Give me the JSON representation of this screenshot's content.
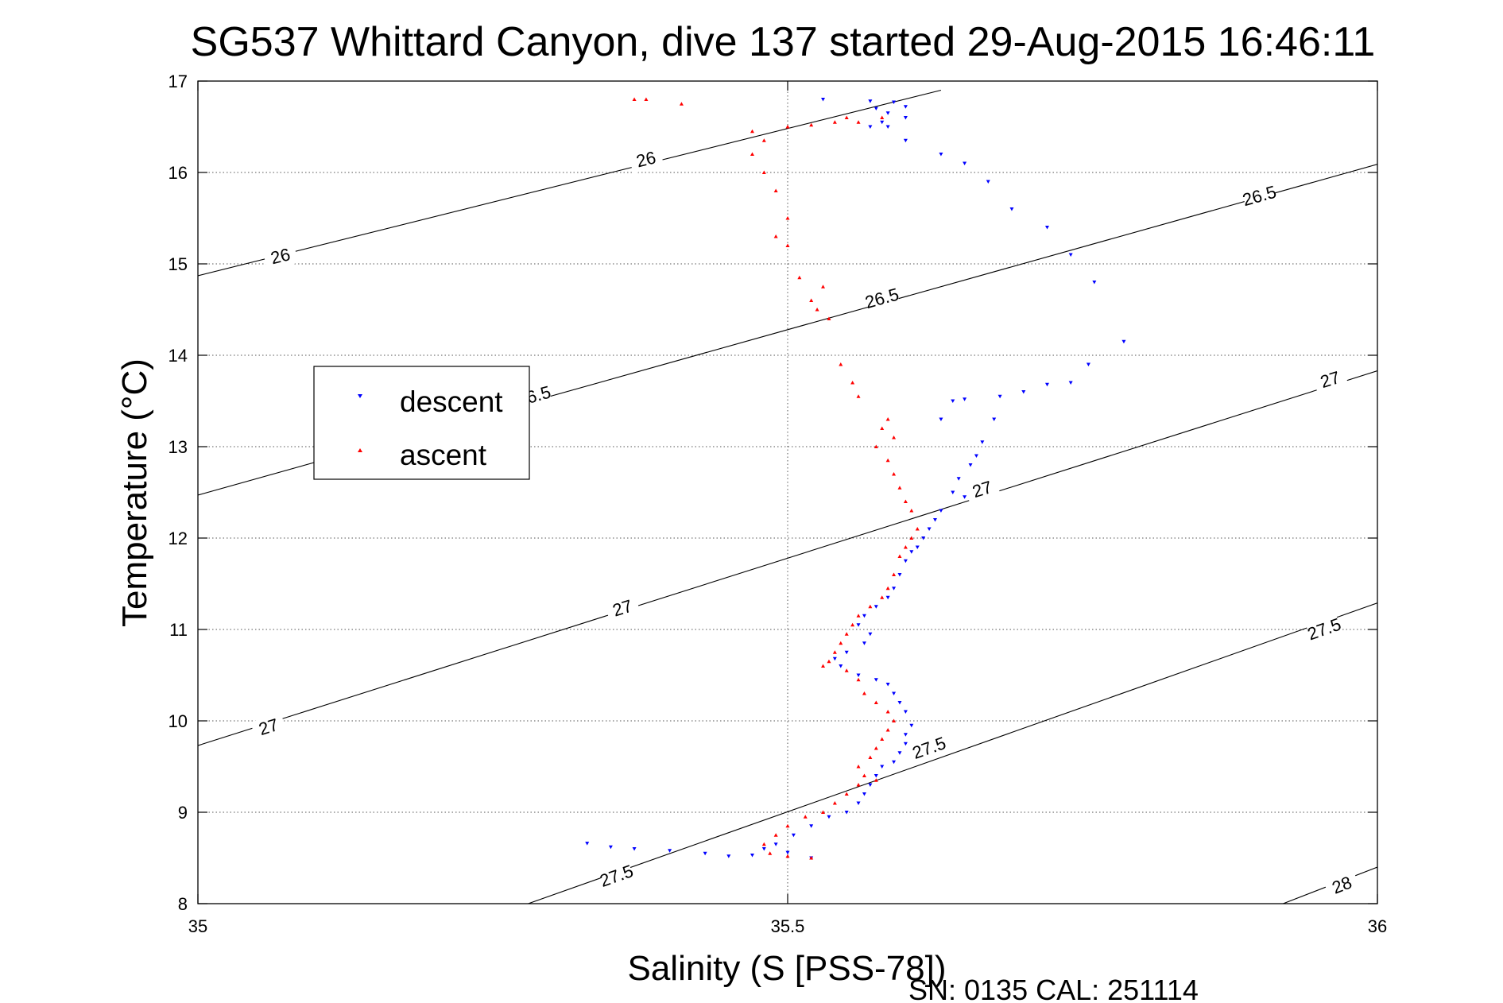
{
  "chart_data": {
    "type": "scatter",
    "title": "SG537 Whittard Canyon, dive 137 started 29-Aug-2015 16:46:11",
    "xlabel": "Salinity (S [PSS-78])",
    "ylabel": "Temperature (°C)",
    "xlim": [
      35,
      36
    ],
    "ylim": [
      8,
      17
    ],
    "xticks": [
      35,
      35.5,
      36
    ],
    "xtick_labels": [
      "35",
      "35.5",
      "36"
    ],
    "yticks": [
      8,
      9,
      10,
      11,
      12,
      13,
      14,
      15,
      16,
      17
    ],
    "ytick_labels": [
      "8",
      "9",
      "10",
      "11",
      "12",
      "13",
      "14",
      "15",
      "16",
      "17"
    ],
    "grid": true,
    "legend_position": "middle-left",
    "footer": "SN: 0135  CAL: 251114",
    "isopycnals": [
      {
        "sigma": 26.0,
        "points": [
          [
            35.0,
            14.87
          ],
          [
            35.63,
            16.9
          ]
        ],
        "labels": [
          {
            "text": "26",
            "x": 35.07,
            "y": 15.08
          },
          {
            "text": "26",
            "x": 35.38,
            "y": 16.14
          }
        ]
      },
      {
        "sigma": 26.5,
        "points": [
          [
            35.0,
            12.47
          ],
          [
            36.0,
            16.09
          ]
        ],
        "labels": [
          {
            "text": "26.5",
            "x": 35.58,
            "y": 14.62
          },
          {
            "text": "26.5",
            "x": 35.9,
            "y": 15.74
          },
          {
            "text": "26.5",
            "x": 35.285,
            "y": 13.55
          }
        ]
      },
      {
        "sigma": 27.0,
        "points": [
          [
            35.0,
            9.73
          ],
          [
            36.0,
            13.83
          ]
        ],
        "labels": [
          {
            "text": "27",
            "x": 35.06,
            "y": 9.93
          },
          {
            "text": "27",
            "x": 35.36,
            "y": 11.23
          },
          {
            "text": "27",
            "x": 35.665,
            "y": 12.53
          },
          {
            "text": "27",
            "x": 35.96,
            "y": 13.73
          }
        ]
      },
      {
        "sigma": 27.5,
        "points": [
          [
            35.28,
            8.0
          ],
          [
            36.0,
            11.29
          ]
        ],
        "labels": [
          {
            "text": "27.5",
            "x": 35.355,
            "y": 8.3
          },
          {
            "text": "27.5",
            "x": 35.62,
            "y": 9.7
          },
          {
            "text": "27.5",
            "x": 35.955,
            "y": 11.0
          }
        ]
      },
      {
        "sigma": 28.0,
        "points": [
          [
            35.92,
            8.0
          ],
          [
            36.0,
            8.4
          ]
        ],
        "labels": [
          {
            "text": "28",
            "x": 35.97,
            "y": 8.2
          }
        ]
      }
    ],
    "series": [
      {
        "name": "descent",
        "color": "#0000ff",
        "marker": "triangle-down",
        "points": [
          [
            35.53,
            16.8
          ],
          [
            35.57,
            16.78
          ],
          [
            35.59,
            16.77
          ],
          [
            35.6,
            16.72
          ],
          [
            35.575,
            16.7
          ],
          [
            35.585,
            16.65
          ],
          [
            35.6,
            16.6
          ],
          [
            35.58,
            16.55
          ],
          [
            35.57,
            16.5
          ],
          [
            35.585,
            16.5
          ],
          [
            35.6,
            16.35
          ],
          [
            35.63,
            16.2
          ],
          [
            35.65,
            16.1
          ],
          [
            35.67,
            15.9
          ],
          [
            35.69,
            15.6
          ],
          [
            35.72,
            15.4
          ],
          [
            35.74,
            15.1
          ],
          [
            35.76,
            14.8
          ],
          [
            35.785,
            14.15
          ],
          [
            35.755,
            13.9
          ],
          [
            35.74,
            13.7
          ],
          [
            35.72,
            13.68
          ],
          [
            35.7,
            13.6
          ],
          [
            35.68,
            13.55
          ],
          [
            35.65,
            13.52
          ],
          [
            35.64,
            13.5
          ],
          [
            35.63,
            13.3
          ],
          [
            35.675,
            13.3
          ],
          [
            35.665,
            13.05
          ],
          [
            35.66,
            12.9
          ],
          [
            35.655,
            12.8
          ],
          [
            35.645,
            12.65
          ],
          [
            35.64,
            12.5
          ],
          [
            35.65,
            12.45
          ],
          [
            35.63,
            12.3
          ],
          [
            35.625,
            12.2
          ],
          [
            35.62,
            12.1
          ],
          [
            35.615,
            12.0
          ],
          [
            35.61,
            11.9
          ],
          [
            35.605,
            11.85
          ],
          [
            35.6,
            11.75
          ],
          [
            35.595,
            11.6
          ],
          [
            35.59,
            11.45
          ],
          [
            35.585,
            11.35
          ],
          [
            35.575,
            11.25
          ],
          [
            35.565,
            11.15
          ],
          [
            35.56,
            11.05
          ],
          [
            35.57,
            10.95
          ],
          [
            35.565,
            10.85
          ],
          [
            35.55,
            10.75
          ],
          [
            35.54,
            10.68
          ],
          [
            35.545,
            10.6
          ],
          [
            35.56,
            10.5
          ],
          [
            35.575,
            10.45
          ],
          [
            35.585,
            10.4
          ],
          [
            35.59,
            10.3
          ],
          [
            35.595,
            10.2
          ],
          [
            35.6,
            10.1
          ],
          [
            35.605,
            9.95
          ],
          [
            35.6,
            9.85
          ],
          [
            35.6,
            9.75
          ],
          [
            35.595,
            9.65
          ],
          [
            35.59,
            9.55
          ],
          [
            35.58,
            9.5
          ],
          [
            35.575,
            9.4
          ],
          [
            35.57,
            9.3
          ],
          [
            35.565,
            9.2
          ],
          [
            35.56,
            9.1
          ],
          [
            35.55,
            9.0
          ],
          [
            35.535,
            8.95
          ],
          [
            35.52,
            8.85
          ],
          [
            35.505,
            8.75
          ],
          [
            35.49,
            8.65
          ],
          [
            35.48,
            8.6
          ],
          [
            35.5,
            8.56
          ],
          [
            35.47,
            8.53
          ],
          [
            35.45,
            8.52
          ],
          [
            35.43,
            8.55
          ],
          [
            35.4,
            8.58
          ],
          [
            35.37,
            8.6
          ],
          [
            35.35,
            8.62
          ],
          [
            35.33,
            8.66
          ],
          [
            35.52,
            8.5
          ]
        ]
      },
      {
        "name": "ascent",
        "color": "#ff0000",
        "marker": "triangle-up",
        "points": [
          [
            35.37,
            16.8
          ],
          [
            35.38,
            16.8
          ],
          [
            35.41,
            16.75
          ],
          [
            35.47,
            16.45
          ],
          [
            35.5,
            16.5
          ],
          [
            35.52,
            16.52
          ],
          [
            35.54,
            16.55
          ],
          [
            35.56,
            16.55
          ],
          [
            35.55,
            16.6
          ],
          [
            35.58,
            16.6
          ],
          [
            35.48,
            16.35
          ],
          [
            35.47,
            16.2
          ],
          [
            35.48,
            16.0
          ],
          [
            35.49,
            15.8
          ],
          [
            35.5,
            15.5
          ],
          [
            35.49,
            15.3
          ],
          [
            35.5,
            15.2
          ],
          [
            35.51,
            14.85
          ],
          [
            35.53,
            14.75
          ],
          [
            35.52,
            14.6
          ],
          [
            35.525,
            14.5
          ],
          [
            35.535,
            14.4
          ],
          [
            35.545,
            13.9
          ],
          [
            35.555,
            13.7
          ],
          [
            35.56,
            13.55
          ],
          [
            35.585,
            13.3
          ],
          [
            35.58,
            13.2
          ],
          [
            35.575,
            13.0
          ],
          [
            35.59,
            13.1
          ],
          [
            35.585,
            12.85
          ],
          [
            35.59,
            12.7
          ],
          [
            35.595,
            12.55
          ],
          [
            35.6,
            12.4
          ],
          [
            35.605,
            12.3
          ],
          [
            35.61,
            12.1
          ],
          [
            35.605,
            12.0
          ],
          [
            35.6,
            11.9
          ],
          [
            35.595,
            11.8
          ],
          [
            35.59,
            11.6
          ],
          [
            35.585,
            11.45
          ],
          [
            35.58,
            11.35
          ],
          [
            35.57,
            11.25
          ],
          [
            35.56,
            11.15
          ],
          [
            35.555,
            11.05
          ],
          [
            35.55,
            10.95
          ],
          [
            35.545,
            10.85
          ],
          [
            35.54,
            10.75
          ],
          [
            35.535,
            10.65
          ],
          [
            35.53,
            10.6
          ],
          [
            35.55,
            10.55
          ],
          [
            35.56,
            10.45
          ],
          [
            35.565,
            10.3
          ],
          [
            35.575,
            10.2
          ],
          [
            35.585,
            10.1
          ],
          [
            35.59,
            10.0
          ],
          [
            35.585,
            9.9
          ],
          [
            35.58,
            9.8
          ],
          [
            35.575,
            9.7
          ],
          [
            35.57,
            9.6
          ],
          [
            35.56,
            9.5
          ],
          [
            35.565,
            9.4
          ],
          [
            35.575,
            9.35
          ],
          [
            35.56,
            9.3
          ],
          [
            35.55,
            9.2
          ],
          [
            35.54,
            9.1
          ],
          [
            35.53,
            9.0
          ],
          [
            35.515,
            8.95
          ],
          [
            35.5,
            8.85
          ],
          [
            35.49,
            8.75
          ],
          [
            35.48,
            8.65
          ],
          [
            35.485,
            8.55
          ],
          [
            35.5,
            8.52
          ],
          [
            35.52,
            8.5
          ]
        ]
      }
    ]
  }
}
